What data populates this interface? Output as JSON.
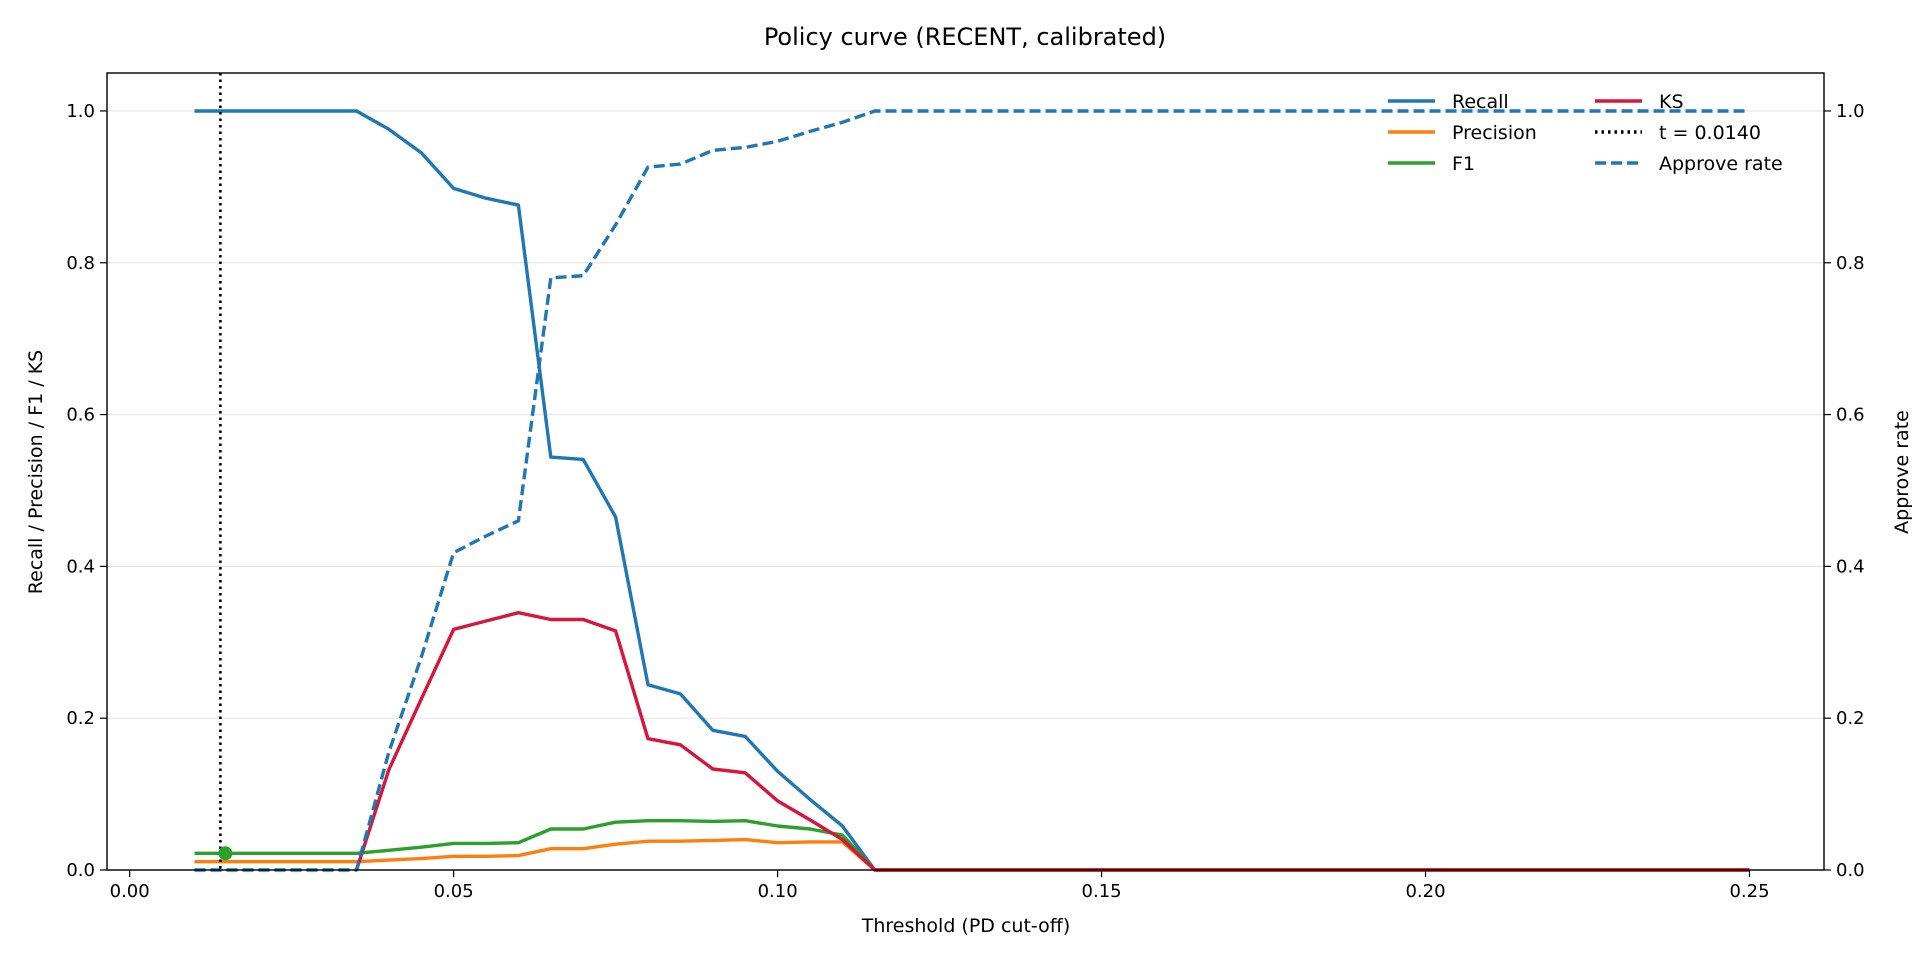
{
  "chart_data": {
    "type": "line",
    "title": "Policy curve (RECENT, calibrated)",
    "xlabel": "Threshold (PD cut-off)",
    "ylabel": "Recall / Precision / F1 / KS",
    "y2label": "Approve rate",
    "xlim": [
      -0.0035,
      0.2615
    ],
    "ylim": [
      0,
      1.05
    ],
    "y2lim": [
      0,
      1.05
    ],
    "xticks": [
      0.0,
      0.05,
      0.1,
      0.15,
      0.2,
      0.25
    ],
    "xtick_labels": [
      "0.00",
      "0.05",
      "0.10",
      "0.15",
      "0.20",
      "0.25"
    ],
    "yticks": [
      0.0,
      0.2,
      0.4,
      0.6,
      0.8,
      1.0
    ],
    "ytick_labels": [
      "0.0",
      "0.2",
      "0.4",
      "0.6",
      "0.8",
      "1.0"
    ],
    "y2ticks": [
      0.0,
      0.2,
      0.4,
      0.6,
      0.8,
      1.0
    ],
    "y2tick_labels": [
      "0.0",
      "0.2",
      "0.4",
      "0.6",
      "0.8",
      "1.0"
    ],
    "grid": "horizontal",
    "legend_placement": "top-right",
    "threshold": {
      "x": 0.014,
      "label": "t = 0.0140",
      "marker_y": 0.022,
      "marker_color": "#2ca02c"
    },
    "series": [
      {
        "name": "Recall",
        "color": "#1f77b4",
        "style": "solid",
        "axis": "left",
        "points": [
          [
            0.01,
            1.0
          ],
          [
            0.015,
            1.0
          ],
          [
            0.02,
            1.0
          ],
          [
            0.025,
            1.0
          ],
          [
            0.03,
            1.0
          ],
          [
            0.035,
            1.0
          ],
          [
            0.04,
            0.976
          ],
          [
            0.045,
            0.945
          ],
          [
            0.05,
            0.898
          ],
          [
            0.055,
            0.885
          ],
          [
            0.06,
            0.876
          ],
          [
            0.065,
            0.544
          ],
          [
            0.07,
            0.541
          ],
          [
            0.075,
            0.465
          ],
          [
            0.08,
            0.244
          ],
          [
            0.085,
            0.232
          ],
          [
            0.09,
            0.184
          ],
          [
            0.095,
            0.176
          ],
          [
            0.1,
            0.13
          ],
          [
            0.105,
            0.093
          ],
          [
            0.11,
            0.058
          ],
          [
            0.115,
            0.0
          ],
          [
            0.25,
            0.0
          ]
        ]
      },
      {
        "name": "Precision",
        "color": "#ff7f0e",
        "style": "solid",
        "axis": "left",
        "points": [
          [
            0.01,
            0.011
          ],
          [
            0.015,
            0.011
          ],
          [
            0.02,
            0.011
          ],
          [
            0.025,
            0.011
          ],
          [
            0.03,
            0.011
          ],
          [
            0.035,
            0.011
          ],
          [
            0.04,
            0.013
          ],
          [
            0.045,
            0.015
          ],
          [
            0.05,
            0.018
          ],
          [
            0.055,
            0.018
          ],
          [
            0.06,
            0.019
          ],
          [
            0.065,
            0.028
          ],
          [
            0.07,
            0.028
          ],
          [
            0.075,
            0.034
          ],
          [
            0.08,
            0.038
          ],
          [
            0.085,
            0.038
          ],
          [
            0.09,
            0.039
          ],
          [
            0.095,
            0.04
          ],
          [
            0.1,
            0.036
          ],
          [
            0.105,
            0.037
          ],
          [
            0.11,
            0.037
          ],
          [
            0.115,
            0.0
          ],
          [
            0.25,
            0.0
          ]
        ]
      },
      {
        "name": "F1",
        "color": "#2ca02c",
        "style": "solid",
        "axis": "left",
        "points": [
          [
            0.01,
            0.022
          ],
          [
            0.015,
            0.022
          ],
          [
            0.02,
            0.022
          ],
          [
            0.025,
            0.022
          ],
          [
            0.03,
            0.022
          ],
          [
            0.035,
            0.022
          ],
          [
            0.04,
            0.026
          ],
          [
            0.045,
            0.03
          ],
          [
            0.05,
            0.035
          ],
          [
            0.055,
            0.035
          ],
          [
            0.06,
            0.036
          ],
          [
            0.065,
            0.054
          ],
          [
            0.07,
            0.054
          ],
          [
            0.075,
            0.063
          ],
          [
            0.08,
            0.065
          ],
          [
            0.085,
            0.065
          ],
          [
            0.09,
            0.064
          ],
          [
            0.095,
            0.065
          ],
          [
            0.1,
            0.058
          ],
          [
            0.105,
            0.054
          ],
          [
            0.11,
            0.046
          ],
          [
            0.115,
            0.0
          ],
          [
            0.25,
            0.0
          ]
        ]
      },
      {
        "name": "KS",
        "color": "#d6163b",
        "style": "solid",
        "axis": "left",
        "points": [
          [
            0.035,
            0.0
          ],
          [
            0.04,
            0.132
          ],
          [
            0.045,
            0.225
          ],
          [
            0.05,
            0.317
          ],
          [
            0.055,
            0.328
          ],
          [
            0.06,
            0.339
          ],
          [
            0.065,
            0.33
          ],
          [
            0.07,
            0.33
          ],
          [
            0.075,
            0.315
          ],
          [
            0.08,
            0.173
          ],
          [
            0.085,
            0.165
          ],
          [
            0.09,
            0.133
          ],
          [
            0.095,
            0.128
          ],
          [
            0.1,
            0.091
          ],
          [
            0.105,
            0.066
          ],
          [
            0.11,
            0.04
          ],
          [
            0.115,
            0.0
          ],
          [
            0.25,
            0.0
          ]
        ]
      },
      {
        "name": "Approve rate",
        "color": "#1f77b4",
        "style": "dashed",
        "axis": "right",
        "points": [
          [
            0.01,
            0.0
          ],
          [
            0.015,
            0.0
          ],
          [
            0.02,
            0.0
          ],
          [
            0.025,
            0.0
          ],
          [
            0.03,
            0.0
          ],
          [
            0.035,
            0.0
          ],
          [
            0.04,
            0.155
          ],
          [
            0.045,
            0.28
          ],
          [
            0.05,
            0.418
          ],
          [
            0.055,
            0.44
          ],
          [
            0.06,
            0.46
          ],
          [
            0.065,
            0.78
          ],
          [
            0.07,
            0.783
          ],
          [
            0.075,
            0.85
          ],
          [
            0.08,
            0.926
          ],
          [
            0.085,
            0.93
          ],
          [
            0.09,
            0.948
          ],
          [
            0.095,
            0.952
          ],
          [
            0.1,
            0.96
          ],
          [
            0.105,
            0.973
          ],
          [
            0.11,
            0.985
          ],
          [
            0.115,
            1.0
          ],
          [
            0.25,
            1.0
          ]
        ]
      }
    ],
    "legend": [
      {
        "name": "Recall",
        "color": "#1f77b4",
        "style": "solid"
      },
      {
        "name": "Precision",
        "color": "#ff7f0e",
        "style": "solid"
      },
      {
        "name": "F1",
        "color": "#2ca02c",
        "style": "solid"
      },
      {
        "name": "KS",
        "color": "#d6163b",
        "style": "solid"
      },
      {
        "name": "t = 0.0140",
        "color": "#000000",
        "style": "dotted"
      },
      {
        "name": "Approve rate",
        "color": "#1f77b4",
        "style": "dashed"
      }
    ]
  }
}
